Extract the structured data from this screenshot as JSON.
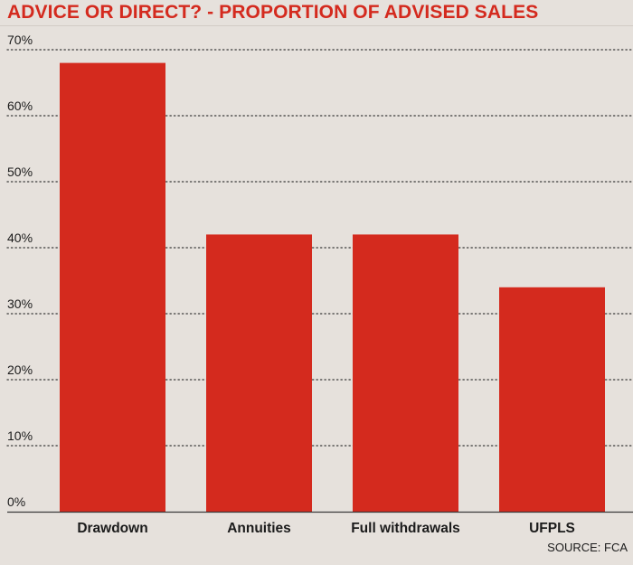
{
  "chart_data": {
    "type": "bar",
    "title": "ADVICE OR DIRECT? - PROPORTION OF ADVISED SALES",
    "categories": [
      "Drawdown",
      "Annuities",
      "Full withdrawals",
      "UFPLS"
    ],
    "values": [
      68,
      42,
      42,
      34
    ],
    "y_ticks": [
      "0%",
      "10%",
      "20%",
      "30%",
      "40%",
      "50%",
      "60%",
      "70%"
    ],
    "y_tick_values": [
      0,
      10,
      20,
      30,
      40,
      50,
      60,
      70
    ],
    "ylim": [
      0,
      70
    ],
    "xlabel": "",
    "ylabel": "",
    "grid": "dotted horizontal",
    "source": "SOURCE: FCA",
    "colors": {
      "bar": "#d42a1e",
      "title": "#d42a1e",
      "text": "#1b1b1b",
      "grid": "#3a3a3a",
      "axis": "#3a3a3a",
      "background": "#e6e1dc"
    }
  }
}
